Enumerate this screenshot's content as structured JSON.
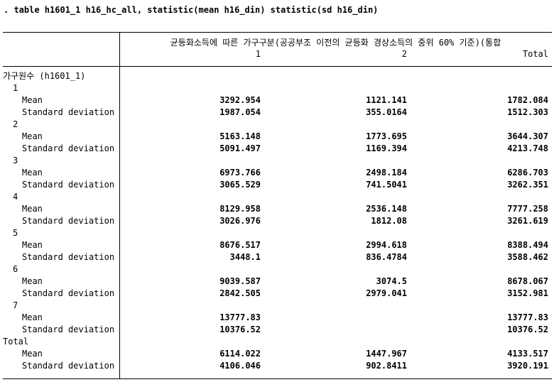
{
  "command": ". table h1601_1 h16_hc_all, statistic(mean h16_din) statistic(sd h16_din)",
  "colors": {
    "background": "#ffffff",
    "text": "#000000",
    "rule": "#000000"
  },
  "table": {
    "spanner": "균등화소득에 따른 가구구분(공공부조 이전의 균등화 경상소득의 중위 60% 기준)(통합",
    "col_headers": [
      "1",
      "2",
      "Total"
    ],
    "stub_header": "가구원수 (h1601_1)",
    "stat_labels": {
      "mean": "Mean",
      "sd": "Standard deviation"
    },
    "groups": [
      {
        "label": "1",
        "mean": [
          "3292.954",
          "1121.141",
          "1782.084"
        ],
        "sd": [
          "1987.054",
          "355.0164",
          "1512.303"
        ]
      },
      {
        "label": "2",
        "mean": [
          "5163.148",
          "1773.695",
          "3644.307"
        ],
        "sd": [
          "5091.497",
          "1169.394",
          "4213.748"
        ]
      },
      {
        "label": "3",
        "mean": [
          "6973.766",
          "2498.184",
          "6286.703"
        ],
        "sd": [
          "3065.529",
          "741.5041",
          "3262.351"
        ]
      },
      {
        "label": "4",
        "mean": [
          "8129.958",
          "2536.148",
          "7777.258"
        ],
        "sd": [
          "3026.976",
          "1812.08",
          "3261.619"
        ]
      },
      {
        "label": "5",
        "mean": [
          "8676.517",
          "2994.618",
          "8388.494"
        ],
        "sd": [
          "3448.1",
          "836.4784",
          "3588.462"
        ]
      },
      {
        "label": "6",
        "mean": [
          "9039.587",
          "3074.5",
          "8678.067"
        ],
        "sd": [
          "2842.505",
          "2979.041",
          "3152.981"
        ]
      },
      {
        "label": "7",
        "mean": [
          "13777.83",
          "",
          "13777.83"
        ],
        "sd": [
          "10376.52",
          "",
          "10376.52"
        ]
      },
      {
        "label": "Total",
        "mean": [
          "6114.022",
          "1447.967",
          "4133.517"
        ],
        "sd": [
          "4106.046",
          "902.8411",
          "3920.191"
        ]
      }
    ]
  }
}
